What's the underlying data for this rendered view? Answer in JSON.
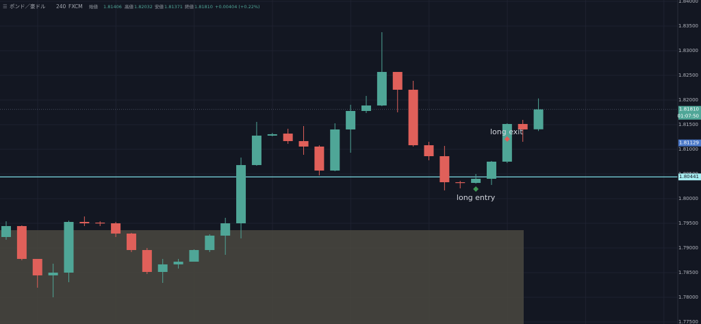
{
  "chart_data": {
    "type": "candlestick",
    "header": {
      "symbol": "ポンド／豪ドル",
      "interval": "240",
      "source": "FXCM",
      "open_label": "始値",
      "open": "1.81406",
      "high_label": "高値",
      "high": "1.82032",
      "low_label": "安値",
      "low": "1.81371",
      "close_label": "終値",
      "close": "1.81810",
      "change": "+0.00404 (+0.22%)"
    },
    "categories": [
      null,
      null,
      null,
      null,
      null,
      null,
      null,
      null,
      null,
      null,
      null,
      null,
      null,
      null,
      null,
      null,
      null,
      null,
      null,
      null,
      null,
      null,
      null,
      null,
      null,
      null,
      null,
      null,
      null,
      null,
      null,
      null,
      null,
      null,
      null
    ],
    "series": [
      {
        "up_color": "#4fa697",
        "down_color": "#e0605a",
        "open": [
          1.79222,
          1.79444,
          1.78778,
          1.78444,
          1.785,
          1.79528,
          1.79514,
          1.795,
          1.79292,
          1.78958,
          1.78514,
          1.78667,
          1.78722,
          1.78958,
          1.7925,
          1.795,
          1.80681,
          1.81278,
          1.81319,
          1.81167,
          1.81056,
          1.80569,
          1.81403,
          1.81778,
          1.81889,
          1.82569,
          1.82208,
          1.81083,
          1.80861,
          1.80333,
          1.80319,
          1.80403,
          1.8075,
          1.81514,
          1.81406
        ],
        "high": [
          1.79542,
          1.79458,
          1.78778,
          1.78681,
          1.79556,
          1.79639,
          1.79542,
          1.79528,
          1.79306,
          1.79,
          1.78778,
          1.78778,
          1.78972,
          1.79278,
          1.79611,
          1.80833,
          1.81556,
          1.81333,
          1.81417,
          1.81472,
          1.81083,
          1.81528,
          1.81903,
          1.82083,
          1.83375,
          1.82569,
          1.82389,
          1.81153,
          1.81069,
          1.80361,
          1.805,
          1.80764,
          1.81528,
          1.81597,
          1.82032
        ],
        "low": [
          1.79167,
          1.7875,
          1.78194,
          1.78,
          1.78306,
          1.79444,
          1.79444,
          1.79222,
          1.78917,
          1.78472,
          1.78292,
          1.78583,
          1.78722,
          1.78917,
          1.78861,
          1.79194,
          1.80667,
          1.81264,
          1.81111,
          1.80889,
          1.80472,
          1.80556,
          1.80931,
          1.81736,
          1.81875,
          1.8175,
          1.81056,
          1.80778,
          1.80167,
          1.80208,
          1.80306,
          1.80278,
          1.80722,
          1.81153,
          1.81371
        ],
        "close": [
          1.79444,
          1.78778,
          1.78444,
          1.785,
          1.79528,
          1.795,
          1.795,
          1.79292,
          1.78958,
          1.78514,
          1.78667,
          1.78722,
          1.78958,
          1.7925,
          1.795,
          1.80681,
          1.81278,
          1.81306,
          1.81167,
          1.81056,
          1.80569,
          1.81403,
          1.81778,
          1.81889,
          1.82569,
          1.82208,
          1.81083,
          1.80861,
          1.80333,
          1.80319,
          1.80403,
          1.8075,
          1.81514,
          1.81403,
          1.8181
        ]
      }
    ],
    "ylim": [
      1.775,
      1.84
    ],
    "yticks": [
      {
        "value": 1.775,
        "label": "1.77500"
      },
      {
        "value": 1.78,
        "label": "1.78000"
      },
      {
        "value": 1.785,
        "label": "1.78500"
      },
      {
        "value": 1.79,
        "label": "1.79000"
      },
      {
        "value": 1.795,
        "label": "1.79500"
      },
      {
        "value": 1.8,
        "label": "1.80000"
      },
      {
        "value": 1.805,
        "label": "1.80500"
      },
      {
        "value": 1.81,
        "label": "1.81000"
      },
      {
        "value": 1.815,
        "label": "1.81500"
      },
      {
        "value": 1.82,
        "label": "1.82000"
      },
      {
        "value": 1.825,
        "label": "1.82500"
      },
      {
        "value": 1.83,
        "label": "1.83000"
      },
      {
        "value": 1.835,
        "label": "1.83500"
      },
      {
        "value": 1.84,
        "label": "1.84000"
      }
    ],
    "grid": true,
    "zone_top": 1.79361,
    "last_price": {
      "value": 1.8181,
      "label": "1.81810",
      "countdown": "01:07:50"
    },
    "marker_price": {
      "value": 1.81129,
      "label": "1.81129"
    },
    "horizontal_line": {
      "value": 1.80441,
      "label": "1.80441"
    },
    "annotations": [
      {
        "text": "long entry"
      },
      {
        "text": "long exit"
      }
    ]
  }
}
